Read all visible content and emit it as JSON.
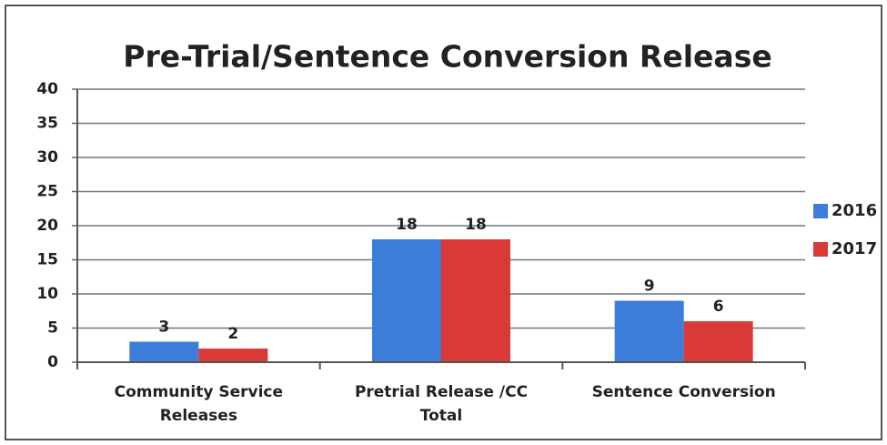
{
  "chart_data": {
    "type": "bar",
    "title": "Pre-Trial/Sentence Conversion Release",
    "categories": [
      "Community Service Releases",
      "Pretrial Release /CC Total",
      "Sentence Conversion"
    ],
    "series": [
      {
        "name": "2016",
        "color": "#3b7dd8",
        "values": [
          3,
          18,
          9
        ]
      },
      {
        "name": "2017",
        "color": "#d93a36",
        "values": [
          2,
          18,
          6
        ]
      }
    ],
    "ylim": [
      0,
      40
    ],
    "yticks": [
      0,
      5,
      10,
      15,
      20,
      25,
      30,
      35,
      40
    ],
    "grid": true,
    "legend": "right"
  }
}
